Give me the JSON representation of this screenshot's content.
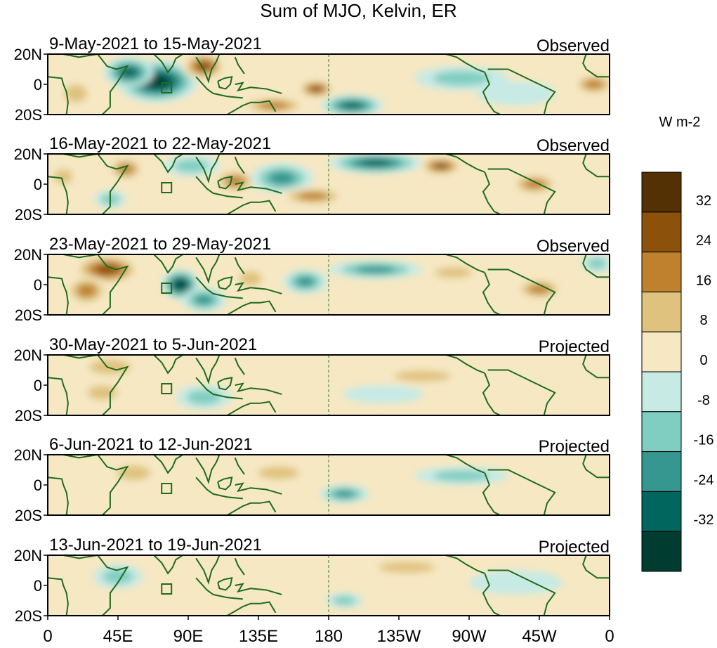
{
  "chart_data": {
    "type": "heatmap",
    "title": "Sum of MJO, Kelvin, ER",
    "y_ticks": [
      "20N",
      "0",
      "20S"
    ],
    "x_ticks": [
      "0",
      "45E",
      "90E",
      "135E",
      "180",
      "135W",
      "90W",
      "45W",
      "0"
    ],
    "colorbar": {
      "units": "W m-2",
      "labels": [
        "32",
        "24",
        "16",
        "8",
        "0",
        "-8",
        "-16",
        "-24",
        "-32"
      ],
      "colors": [
        "#543005",
        "#8c510a",
        "#bf812d",
        "#dfc27d",
        "#f6e8c3",
        "#c7eae5",
        "#80cdc1",
        "#35978f",
        "#01665e",
        "#003c30"
      ]
    },
    "panels": [
      {
        "date_range": "9-May-2021 to 15-May-2021",
        "status": "Observed",
        "anomalies": [
          {
            "lon": 70,
            "lat": 2,
            "value": -40,
            "rx": 26,
            "ry": 14
          },
          {
            "lon": 52,
            "lat": 8,
            "value": -30,
            "rx": 16,
            "ry": 10
          },
          {
            "lon": 100,
            "lat": 12,
            "value": 26,
            "rx": 14,
            "ry": 9
          },
          {
            "lon": 145,
            "lat": -14,
            "value": 22,
            "rx": 22,
            "ry": 6
          },
          {
            "lon": 172,
            "lat": -3,
            "value": 30,
            "rx": 12,
            "ry": 6
          },
          {
            "lon": 195,
            "lat": -14,
            "value": -26,
            "rx": 20,
            "ry": 7
          },
          {
            "lon": 350,
            "lat": 0,
            "value": 22,
            "rx": 14,
            "ry": 7
          },
          {
            "lon": 18,
            "lat": -6,
            "value": 14,
            "rx": 12,
            "ry": 10
          },
          {
            "lon": 265,
            "lat": 4,
            "value": -10,
            "rx": 30,
            "ry": 8
          },
          {
            "lon": 300,
            "lat": -6,
            "value": -8,
            "rx": 25,
            "ry": 8
          }
        ]
      },
      {
        "date_range": "16-May-2021 to 22-May-2021",
        "status": "Observed",
        "anomalies": [
          {
            "lon": 50,
            "lat": 10,
            "value": 18,
            "rx": 12,
            "ry": 8
          },
          {
            "lon": 92,
            "lat": 12,
            "value": -14,
            "rx": 18,
            "ry": 7
          },
          {
            "lon": 120,
            "lat": 2,
            "value": 18,
            "rx": 14,
            "ry": 8
          },
          {
            "lon": 150,
            "lat": 4,
            "value": -22,
            "rx": 20,
            "ry": 10
          },
          {
            "lon": 210,
            "lat": 14,
            "value": -28,
            "rx": 30,
            "ry": 7
          },
          {
            "lon": 252,
            "lat": 12,
            "value": 32,
            "rx": 14,
            "ry": 6
          },
          {
            "lon": 170,
            "lat": -8,
            "value": 18,
            "rx": 22,
            "ry": 6
          },
          {
            "lon": 312,
            "lat": 0,
            "value": 20,
            "rx": 16,
            "ry": 7
          },
          {
            "lon": 40,
            "lat": -10,
            "value": -14,
            "rx": 10,
            "ry": 6
          },
          {
            "lon": 10,
            "lat": 5,
            "value": 12,
            "rx": 10,
            "ry": 8
          }
        ]
      },
      {
        "date_range": "23-May-2021 to 29-May-2021",
        "status": "Observed",
        "anomalies": [
          {
            "lon": 38,
            "lat": 10,
            "value": 30,
            "rx": 22,
            "ry": 10
          },
          {
            "lon": 25,
            "lat": -4,
            "value": 18,
            "rx": 14,
            "ry": 10
          },
          {
            "lon": 85,
            "lat": 0,
            "value": -36,
            "rx": 12,
            "ry": 10
          },
          {
            "lon": 100,
            "lat": -10,
            "value": -18,
            "rx": 14,
            "ry": 8
          },
          {
            "lon": 130,
            "lat": 4,
            "value": 16,
            "rx": 12,
            "ry": 8
          },
          {
            "lon": 165,
            "lat": 2,
            "value": -24,
            "rx": 14,
            "ry": 8
          },
          {
            "lon": 210,
            "lat": 10,
            "value": -22,
            "rx": 30,
            "ry": 6
          },
          {
            "lon": 315,
            "lat": -3,
            "value": 20,
            "rx": 16,
            "ry": 7
          },
          {
            "lon": 260,
            "lat": 8,
            "value": 12,
            "rx": 20,
            "ry": 6
          },
          {
            "lon": 352,
            "lat": 14,
            "value": -12,
            "rx": 10,
            "ry": 6
          }
        ]
      },
      {
        "date_range": "30-May-2021 to 5-Jun-2021",
        "status": "Projected",
        "anomalies": [
          {
            "lon": 40,
            "lat": 12,
            "value": 16,
            "rx": 22,
            "ry": 8
          },
          {
            "lon": 35,
            "lat": -5,
            "value": 10,
            "rx": 16,
            "ry": 8
          },
          {
            "lon": 100,
            "lat": -8,
            "value": -12,
            "rx": 18,
            "ry": 8
          },
          {
            "lon": 150,
            "lat": 0,
            "value": 8,
            "rx": 20,
            "ry": 8
          },
          {
            "lon": 240,
            "lat": 6,
            "value": 10,
            "rx": 30,
            "ry": 6
          },
          {
            "lon": 300,
            "lat": -5,
            "value": 8,
            "rx": 20,
            "ry": 6
          },
          {
            "lon": 215,
            "lat": -6,
            "value": -8,
            "rx": 26,
            "ry": 6
          }
        ]
      },
      {
        "date_range": "6-Jun-2021 to 12-Jun-2021",
        "status": "Projected",
        "anomalies": [
          {
            "lon": 55,
            "lat": 8,
            "value": 10,
            "rx": 18,
            "ry": 8
          },
          {
            "lon": 148,
            "lat": 8,
            "value": 12,
            "rx": 22,
            "ry": 7
          },
          {
            "lon": 190,
            "lat": -6,
            "value": -20,
            "rx": 16,
            "ry": 6
          },
          {
            "lon": 265,
            "lat": 6,
            "value": -10,
            "rx": 30,
            "ry": 6
          },
          {
            "lon": 100,
            "lat": -6,
            "value": 8,
            "rx": 16,
            "ry": 6
          },
          {
            "lon": 330,
            "lat": 0,
            "value": 8,
            "rx": 20,
            "ry": 8
          }
        ]
      },
      {
        "date_range": "13-Jun-2021 to 19-Jun-2021",
        "status": "Projected",
        "anomalies": [
          {
            "lon": 45,
            "lat": 6,
            "value": -10,
            "rx": 16,
            "ry": 8
          },
          {
            "lon": 125,
            "lat": -6,
            "value": 8,
            "rx": 22,
            "ry": 8
          },
          {
            "lon": 230,
            "lat": 12,
            "value": 10,
            "rx": 30,
            "ry": 6
          },
          {
            "lon": 190,
            "lat": -10,
            "value": -12,
            "rx": 12,
            "ry": 5
          },
          {
            "lon": 300,
            "lat": 2,
            "value": -8,
            "rx": 30,
            "ry": 8
          },
          {
            "lon": 100,
            "lat": 6,
            "value": 8,
            "rx": 14,
            "ry": 6
          }
        ]
      }
    ]
  }
}
